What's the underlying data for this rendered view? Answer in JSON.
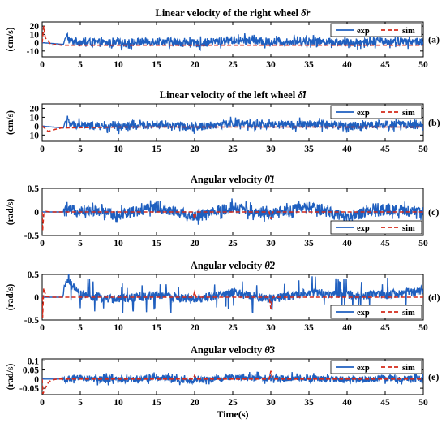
{
  "chart_data": [
    {
      "type": "line",
      "title": "Linear velocity of the right wheel δ̇r",
      "ylabel": "(cm/s)",
      "panel_label": "(a)",
      "xlim": [
        0,
        50
      ],
      "ylim": [
        -17,
        25
      ],
      "yticks": [
        -10,
        0,
        10,
        20
      ],
      "xticks": [
        0,
        5,
        10,
        15,
        20,
        25,
        30,
        35,
        40,
        45,
        50
      ],
      "legend": {
        "position": "top-right",
        "entries": [
          "exp",
          "sim"
        ]
      },
      "series": [
        {
          "name": "exp",
          "color": "#1f5fbf",
          "style": "solid",
          "amplitude": 5,
          "spike": 9,
          "start": 3.2,
          "x": [
            0,
            2.8,
            3.0,
            3.3,
            3.6,
            5,
            10,
            15,
            20,
            25,
            30,
            35,
            40,
            45,
            50
          ],
          "y": [
            0,
            -2,
            5,
            8,
            2,
            1,
            -1,
            2,
            -1,
            3,
            1,
            2,
            0,
            2,
            1
          ]
        },
        {
          "name": "sim",
          "color": "#d42a1a",
          "style": "dashed",
          "x": [
            0,
            0.2,
            0.4,
            0.8,
            1.2,
            1.8,
            2.5,
            10,
            20,
            30,
            40,
            50
          ],
          "y": [
            0,
            20,
            6,
            2,
            -3,
            -2,
            -3,
            -3,
            -3,
            -3,
            -3,
            -3
          ]
        }
      ]
    },
    {
      "type": "line",
      "title": "Linear velocity of the left wheel δ̇l",
      "ylabel": "(cm/s)",
      "panel_label": "(b)",
      "xlim": [
        0,
        50
      ],
      "ylim": [
        -17,
        25
      ],
      "yticks": [
        -10,
        0,
        10,
        20
      ],
      "xticks": [
        0,
        5,
        10,
        15,
        20,
        25,
        30,
        35,
        40,
        45,
        50
      ],
      "legend": {
        "position": "top-right",
        "entries": [
          "exp",
          "sim"
        ]
      },
      "series": [
        {
          "name": "exp",
          "color": "#1f5fbf",
          "style": "solid",
          "amplitude": 4.5,
          "spike": 8,
          "start": 3.2,
          "x": [
            0,
            2.8,
            3.0,
            3.3,
            3.6,
            5,
            10,
            15,
            20,
            25,
            30,
            35,
            40,
            45,
            50
          ],
          "y": [
            0,
            -2,
            5,
            7,
            2,
            1,
            -1,
            2,
            -1,
            3,
            1,
            2,
            0,
            2,
            1
          ]
        },
        {
          "name": "sim",
          "color": "#d42a1a",
          "style": "dashed",
          "x": [
            0,
            0.3,
            0.8,
            1.5,
            2.5,
            10,
            20,
            30,
            40,
            50
          ],
          "y": [
            0,
            -2,
            -6,
            -4,
            -2,
            -1,
            -1,
            -1,
            -1,
            -1
          ]
        }
      ]
    },
    {
      "type": "line",
      "title": "Angular velocity θ̇1",
      "ylabel": "(rad/s)",
      "panel_label": "(c)",
      "xlim": [
        0,
        50
      ],
      "ylim": [
        -0.5,
        0.5
      ],
      "yticks": [
        -0.5,
        0,
        0.5
      ],
      "xticks": [
        0,
        5,
        10,
        15,
        20,
        25,
        30,
        35,
        40,
        45,
        50
      ],
      "legend": {
        "position": "bottom-right",
        "entries": [
          "exp",
          "sim"
        ]
      },
      "series": [
        {
          "name": "exp",
          "color": "#1f5fbf",
          "style": "solid",
          "amplitude": 0.12,
          "spike": 0.2,
          "start": 2.8,
          "x": [
            0,
            2.7,
            5,
            10,
            15,
            20,
            25,
            30,
            35,
            40,
            45,
            50
          ],
          "y": [
            0,
            0,
            0.05,
            -0.05,
            0.1,
            -0.1,
            0.1,
            -0.05,
            0.1,
            -0.1,
            0.05,
            0
          ]
        },
        {
          "name": "sim",
          "color": "#d42a1a",
          "style": "dashed",
          "x": [
            0,
            0.05,
            0.2,
            0.5,
            1,
            5,
            10,
            19.8,
            20,
            20.2,
            29.8,
            30,
            30.2,
            40,
            50
          ],
          "y": [
            0,
            -0.4,
            -0.05,
            0.01,
            0,
            0,
            0,
            0,
            -0.15,
            0,
            0,
            -0.15,
            0,
            0,
            0
          ]
        }
      ]
    },
    {
      "type": "line",
      "title": "Angular velocity θ̇2",
      "ylabel": "(rad/s)",
      "panel_label": "(d)",
      "xlim": [
        0,
        50
      ],
      "ylim": [
        -0.5,
        0.5
      ],
      "yticks": [
        -0.5,
        0,
        0.5
      ],
      "xticks": [
        0,
        5,
        10,
        15,
        20,
        25,
        30,
        35,
        40,
        45,
        50
      ],
      "legend": {
        "position": "bottom-right",
        "entries": [
          "exp",
          "sim"
        ]
      },
      "series": [
        {
          "name": "exp",
          "color": "#1f5fbf",
          "style": "solid",
          "amplitude": 0.1,
          "spike": 0.38,
          "start": 2.8,
          "x": [
            0,
            2.7,
            3.2,
            5,
            10,
            15,
            20,
            25,
            30,
            35,
            40,
            45,
            50
          ],
          "y": [
            0,
            0,
            0.38,
            0.05,
            -0.05,
            0.05,
            -0.05,
            0.1,
            -0.05,
            0.1,
            0.05,
            0.05,
            0.15
          ]
        },
        {
          "name": "sim",
          "color": "#d42a1a",
          "style": "dashed",
          "x": [
            0,
            0.05,
            0.2,
            0.5,
            1,
            10,
            19.8,
            20,
            20.2,
            29.8,
            30,
            30.2,
            40,
            50
          ],
          "y": [
            0,
            -0.45,
            0.2,
            0.02,
            0,
            0,
            0,
            0.12,
            0,
            0,
            -0.25,
            0,
            0,
            0
          ]
        }
      ]
    },
    {
      "type": "line",
      "title": "Angular velocity θ̇3",
      "ylabel": "(rad/s)",
      "panel_label": "(e)",
      "xlim": [
        0,
        50
      ],
      "ylim": [
        -0.085,
        0.11
      ],
      "yticks": [
        -0.05,
        0,
        0.05,
        0.1
      ],
      "xticks": [
        0,
        5,
        10,
        15,
        20,
        25,
        30,
        35,
        40,
        45,
        50
      ],
      "xlabel": "Time(s)",
      "legend": {
        "position": "top-right",
        "entries": [
          "exp",
          "sim"
        ]
      },
      "series": [
        {
          "name": "exp",
          "color": "#1f5fbf",
          "style": "solid",
          "amplitude": 0.018,
          "spike": 0.035,
          "start": 2.6,
          "x": [
            0,
            2.5,
            5,
            10,
            15,
            20,
            25,
            30,
            35,
            40,
            45,
            50
          ],
          "y": [
            0,
            0,
            0.005,
            -0.005,
            0.01,
            -0.01,
            0.01,
            0.005,
            0.005,
            -0.005,
            0.005,
            0
          ]
        },
        {
          "name": "sim",
          "color": "#d42a1a",
          "style": "dashed",
          "x": [
            0,
            0.1,
            0.4,
            0.8,
            1.2,
            2,
            10,
            19.8,
            20,
            20.2,
            29.8,
            30,
            30.2,
            40,
            50
          ],
          "y": [
            0,
            -0.08,
            -0.05,
            -0.02,
            -0.005,
            0,
            0,
            0,
            0.02,
            0,
            0,
            0.045,
            0,
            0,
            0
          ]
        }
      ]
    }
  ]
}
